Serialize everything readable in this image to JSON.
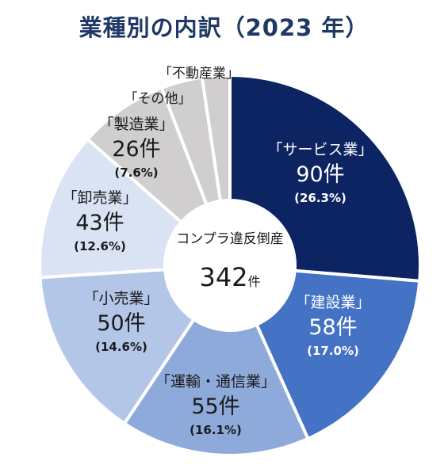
{
  "chart_data": {
    "type": "pie",
    "title": "業種別の内訳（2023 年）",
    "center_label": "コンプラ違反倒産",
    "center_value": "342",
    "center_unit": "件",
    "slices": [
      {
        "label": "「サービス業」",
        "value": 90,
        "percent": "(26.3%)",
        "color": "#0d2462",
        "text_color": "#ffffff"
      },
      {
        "label": "「建設業」",
        "value": 58,
        "percent": "(17.0%)",
        "color": "#4472c4",
        "text_color": "#ffffff"
      },
      {
        "label": "「運輸・通信業」",
        "value": 55,
        "percent": "(16.1%)",
        "color": "#8eaadb",
        "text_color": "#1a1a1a"
      },
      {
        "label": "「小売業」",
        "value": 50,
        "percent": "(14.6%)",
        "color": "#b4c6e7",
        "text_color": "#1a1a1a"
      },
      {
        "label": "「卸売業」",
        "value": 43,
        "percent": "(12.6%)",
        "color": "#dae3f3",
        "text_color": "#1a1a1a"
      },
      {
        "label": "「製造業」",
        "value": 26,
        "percent": "(7.6%)",
        "color": "#d0cece",
        "text_color": "#1a1a1a"
      },
      {
        "label": "「その他」",
        "value": 12,
        "percent": "",
        "color": "#d0cece",
        "text_color": "#1a1a1a"
      },
      {
        "label": "「不動産業」",
        "value": 8,
        "percent": "",
        "color": "#d0cece",
        "text_color": "#1a1a1a"
      }
    ],
    "value_unit": "件"
  }
}
